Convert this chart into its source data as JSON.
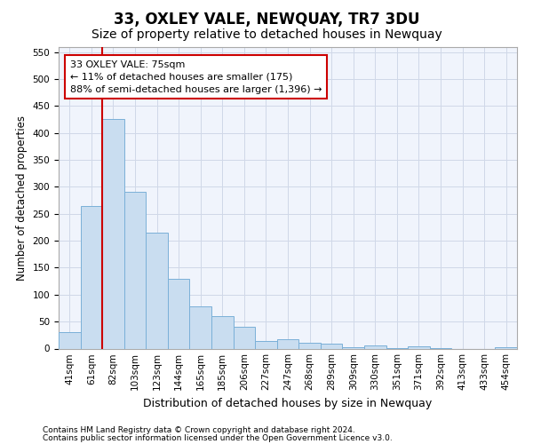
{
  "title": "33, OXLEY VALE, NEWQUAY, TR7 3DU",
  "subtitle": "Size of property relative to detached houses in Newquay",
  "xlabel": "Distribution of detached houses by size in Newquay",
  "ylabel": "Number of detached properties",
  "bar_labels": [
    "41sqm",
    "61sqm",
    "82sqm",
    "103sqm",
    "123sqm",
    "144sqm",
    "165sqm",
    "185sqm",
    "206sqm",
    "227sqm",
    "247sqm",
    "268sqm",
    "289sqm",
    "309sqm",
    "330sqm",
    "351sqm",
    "371sqm",
    "392sqm",
    "413sqm",
    "433sqm",
    "454sqm"
  ],
  "bar_values": [
    30,
    265,
    425,
    290,
    215,
    130,
    78,
    60,
    40,
    14,
    17,
    10,
    9,
    2,
    5,
    1,
    4,
    1,
    0,
    0,
    2
  ],
  "bar_color": "#c9ddf0",
  "bar_edge_color": "#7ab0d8",
  "annotation_text": "33 OXLEY VALE: 75sqm\n← 11% of detached houses are smaller (175)\n88% of semi-detached houses are larger (1,396) →",
  "annotation_box_color": "#ffffff",
  "annotation_box_edge": "#cc0000",
  "vline_color": "#cc0000",
  "vline_x": 1.5,
  "ylim": [
    0,
    560
  ],
  "yticks": [
    0,
    50,
    100,
    150,
    200,
    250,
    300,
    350,
    400,
    450,
    500,
    550
  ],
  "grid_color": "#d0d8e8",
  "footer1": "Contains HM Land Registry data © Crown copyright and database right 2024.",
  "footer2": "Contains public sector information licensed under the Open Government Licence v3.0.",
  "title_fontsize": 12,
  "subtitle_fontsize": 10,
  "xlabel_fontsize": 9,
  "ylabel_fontsize": 8.5,
  "tick_fontsize": 7.5,
  "annot_fontsize": 8,
  "footer_fontsize": 6.5
}
